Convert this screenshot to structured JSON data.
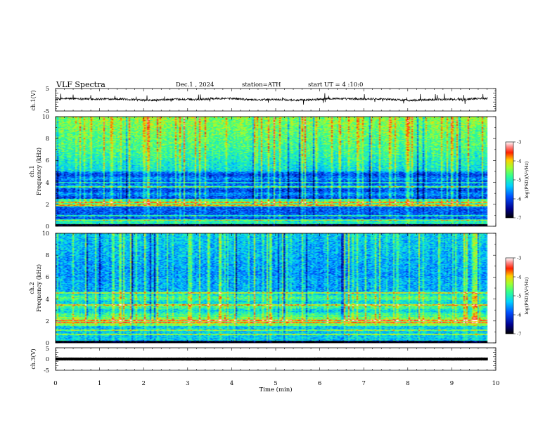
{
  "header": {
    "title": "VLF Spectra",
    "date": "Dec.1 , 2024",
    "station": "station=ATH",
    "start_ut": "start UT = 4 :10:0"
  },
  "chart_data": [
    {
      "type": "line",
      "name": "ch1-waveform",
      "ylabel": "ch.1(V)",
      "ylim": [
        -5,
        5
      ],
      "y_ticks": [
        "5",
        "-5"
      ],
      "xlim": [
        0,
        10
      ],
      "baseline": 0.2,
      "noise_amplitude": 0.9
    },
    {
      "type": "heatmap",
      "name": "ch1-spectrogram",
      "ylabel_line1": "ch.1",
      "ylabel_line2": "Frequency (kHz)",
      "ylim": [
        0,
        10
      ],
      "y_ticks": [
        "0",
        "2",
        "4",
        "6",
        "8",
        "10"
      ],
      "xlim": [
        0,
        10
      ],
      "data_end_min": 9.82,
      "colorbar": {
        "label": "log(PSD)(V²/Hz)",
        "range": [
          -7,
          -3
        ],
        "ticks": [
          "-3",
          "-4",
          "-5",
          "-6",
          "-7"
        ]
      }
    },
    {
      "type": "heatmap",
      "name": "ch2-spectrogram",
      "ylabel_line1": "ch.2",
      "ylabel_line2": "Frequency (kHz)",
      "ylim": [
        0,
        10
      ],
      "y_ticks": [
        "0",
        "2",
        "4",
        "6",
        "8",
        "10"
      ],
      "xlim": [
        0,
        10
      ],
      "data_end_min": 9.82,
      "colorbar": {
        "label": "log(PSD)(V²/Hz)",
        "range": [
          -7,
          -3
        ],
        "ticks": [
          "-3",
          "-4",
          "-5",
          "-6",
          "-7"
        ]
      }
    },
    {
      "type": "line",
      "name": "ch3-waveform",
      "ylabel": "ch.3(V)",
      "ylim": [
        -5,
        5
      ],
      "y_ticks": [
        "5",
        "0",
        "-5"
      ],
      "xlim": [
        0,
        10
      ],
      "baseline": 0,
      "noise_amplitude": 0.1,
      "xlabel": "Time (min)",
      "x_ticks": [
        "0",
        "1",
        "2",
        "3",
        "4",
        "5",
        "6",
        "7",
        "8",
        "9",
        "10"
      ]
    }
  ]
}
